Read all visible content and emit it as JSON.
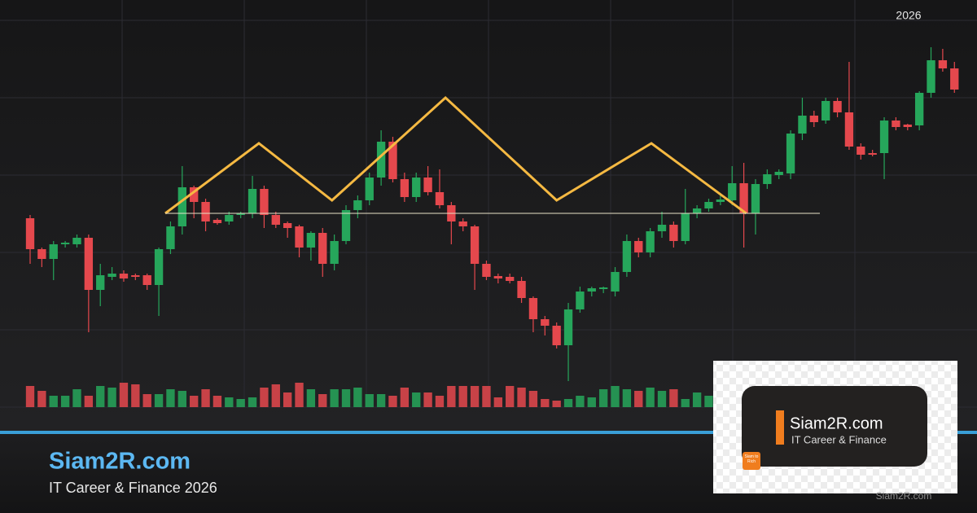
{
  "chart_data": {
    "type": "candlestick",
    "annotation": "2026",
    "x": [
      0,
      1,
      2,
      3,
      4,
      5,
      6,
      7,
      8,
      9,
      10,
      11,
      12,
      13,
      14,
      15,
      16,
      17,
      18,
      19,
      20,
      21,
      22,
      23,
      24,
      25,
      26,
      27,
      28,
      29,
      30,
      31,
      32,
      33,
      34,
      35,
      36,
      37,
      38,
      39,
      40,
      41,
      42,
      43,
      44,
      45,
      46,
      47,
      48,
      49,
      50,
      51,
      52,
      53,
      54,
      55,
      56,
      57,
      58,
      59,
      60,
      61,
      62,
      63,
      64,
      65,
      66,
      67,
      68,
      69,
      70,
      71,
      72,
      73,
      74,
      75,
      76,
      77,
      78,
      79
    ],
    "open": [
      58,
      48.5,
      45.5,
      50,
      50,
      52,
      36,
      40,
      41,
      40.5,
      40.5,
      37.5,
      48.5,
      55.5,
      67.5,
      63,
      57.5,
      57,
      59,
      59.5,
      67,
      59,
      56.5,
      55.5,
      49,
      53.5,
      44,
      51,
      60.5,
      63.5,
      70.5,
      81.5,
      70,
      64.5,
      70.5,
      66,
      62,
      57,
      55.5,
      44,
      40.25,
      40,
      38.75,
      33.5,
      27,
      25,
      19,
      30,
      35.5,
      36.25,
      35.5,
      41.5,
      51,
      47.5,
      54,
      56,
      51,
      59.5,
      61,
      63,
      63.5,
      68.75,
      59.5,
      68.5,
      71.25,
      71.75,
      84,
      89.5,
      88,
      94,
      90.5,
      80,
      78,
      78,
      88,
      86.75,
      86.5,
      96.5,
      106.5,
      104
    ],
    "high": [
      59,
      49,
      51,
      51,
      53,
      53,
      44,
      43,
      42,
      41,
      41,
      49,
      57,
      74,
      68,
      64,
      58,
      60,
      60,
      71,
      68,
      60,
      57,
      56,
      54,
      55,
      53,
      62,
      65,
      72,
      85,
      83,
      72,
      72,
      74,
      73,
      63,
      58,
      56,
      45,
      41,
      41,
      40,
      34,
      28,
      26,
      32,
      37,
      37,
      37,
      43,
      53,
      52,
      55,
      60,
      57,
      67,
      62,
      64,
      65,
      74,
      75,
      70,
      73,
      73,
      85,
      95,
      91,
      95,
      95,
      106,
      81,
      79,
      89,
      89,
      87,
      97,
      110.5,
      110,
      106
    ],
    "low": [
      44,
      43,
      39,
      49,
      49,
      23,
      31,
      39,
      38.5,
      39,
      36,
      28,
      47,
      53,
      58,
      54,
      56,
      56,
      58,
      58,
      55,
      55,
      52,
      46,
      45,
      40,
      42,
      50,
      58,
      62,
      68,
      69,
      63,
      63,
      65,
      61,
      50,
      54,
      36,
      39,
      38,
      38,
      32,
      23,
      22,
      18,
      8,
      29,
      34,
      35,
      34,
      40,
      46,
      46,
      52,
      49,
      50,
      58,
      60,
      62,
      62,
      49,
      53,
      67,
      70,
      70,
      82,
      86,
      87,
      89,
      79,
      76,
      77,
      70,
      85,
      85,
      85,
      95,
      103,
      96.5
    ],
    "close": [
      48.5,
      45.5,
      50,
      50.5,
      52,
      36,
      40.5,
      41,
      39.5,
      40,
      37.5,
      48.5,
      55.5,
      67.5,
      63,
      57,
      56.5,
      59,
      59.5,
      67,
      59,
      56,
      55,
      49,
      53.5,
      44,
      51,
      60.5,
      63.5,
      70.5,
      81.5,
      70,
      64.5,
      70.5,
      66,
      62,
      57,
      55.5,
      44,
      40,
      39.5,
      38.75,
      33.5,
      27,
      25,
      19,
      30,
      35.5,
      36.5,
      36.75,
      41.5,
      51,
      47.5,
      54,
      56,
      51,
      59.5,
      61,
      63,
      63.75,
      68.75,
      59.5,
      68.5,
      71.5,
      72.25,
      84,
      89.5,
      87.5,
      94,
      90.5,
      80,
      77.5,
      77.5,
      88,
      86,
      86,
      96.5,
      106.5,
      104,
      97.5
    ],
    "volume": [
      26,
      20,
      14,
      14,
      22,
      14,
      26,
      24,
      30,
      28,
      16,
      16,
      22,
      20,
      14,
      22,
      14,
      12,
      10,
      12,
      24,
      28,
      18,
      30,
      22,
      16,
      22,
      22,
      24,
      16,
      16,
      14,
      24,
      18,
      18,
      14,
      26,
      26,
      26,
      26,
      12,
      26,
      24,
      20,
      10,
      8,
      10,
      14,
      12,
      22,
      26,
      22,
      20,
      24,
      20,
      22,
      10,
      18,
      14,
      null,
      null,
      null,
      null,
      null,
      null,
      null,
      null,
      null,
      null,
      null,
      null,
      null,
      null,
      null,
      null,
      null,
      null,
      null,
      null,
      null
    ],
    "up_color": "#26a65b",
    "down_color": "#e5484d",
    "xlim": [
      -2.575,
      80.93
    ],
    "ylim": [
      0,
      125
    ],
    "y2lim": [
      0,
      500
    ],
    "overlays": [
      {
        "color": "#f5b942",
        "x": [
          11.55,
          19.55,
          25.8,
          35.5,
          45,
          53.1,
          61.2
        ],
        "y": [
          59.5,
          81,
          63.5,
          95,
          63.5,
          81,
          59.5
        ]
      },
      {
        "color": "#e8e2c8",
        "x": [
          11.55,
          67.5
        ],
        "y": [
          59.5,
          59.5
        ]
      }
    ]
  },
  "footer": {
    "title": "Siam2R.com",
    "subtitle": "IT Career & Finance 2026"
  },
  "logo": {
    "name": "Siam2R.com",
    "tagline": "IT Career & Finance",
    "badge": "Siam to Rich"
  },
  "watermark": "Siam2R.com"
}
